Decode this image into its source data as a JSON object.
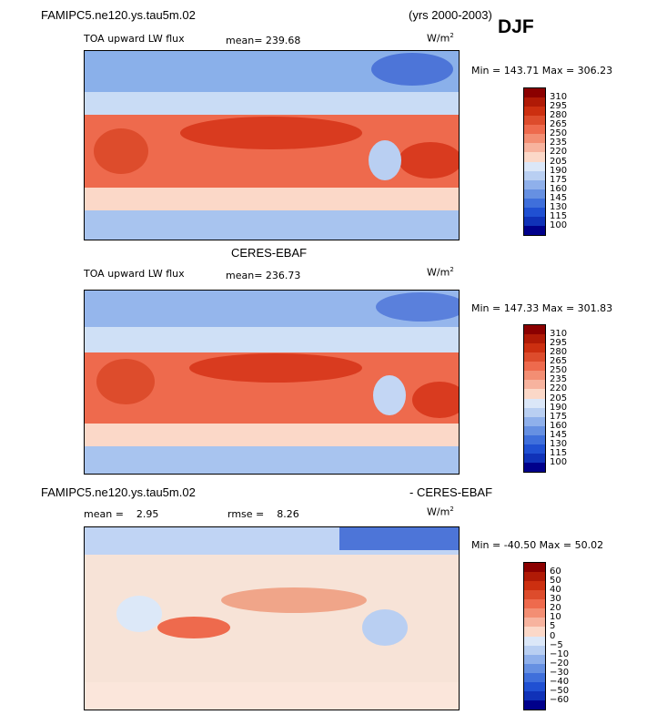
{
  "header": {
    "model_name": "FAMIPC5.ne120.ys.tau5m.02",
    "years": "(yrs 2000-2003)",
    "season": "DJF"
  },
  "panels": [
    {
      "title": "",
      "variable": "TOA upward LW flux",
      "stat_label": "mean=",
      "stat_value": "239.68",
      "rmse_label": "",
      "rmse_value": "",
      "units_base": "W/m",
      "units_sup": "2",
      "range_text": "Min = 143.71 Max = 306.23"
    },
    {
      "title": "CERES-EBAF",
      "variable": "TOA upward LW flux",
      "stat_label": "mean=",
      "stat_value": "236.73",
      "rmse_label": "",
      "rmse_value": "",
      "units_base": "W/m",
      "units_sup": "2",
      "range_text": "Min = 147.33 Max = 301.83"
    },
    {
      "title": "FAMIPC5.ne120.ys.tau5m.02",
      "title_right": "- CERES-EBAF",
      "variable": "",
      "stat_label": "mean =",
      "stat_value": "2.95",
      "rmse_label": "rmse =",
      "rmse_value": "8.26",
      "units_base": "W/m",
      "units_sup": "2",
      "range_text": "Min = -40.50 Max =  50.02"
    }
  ],
  "colors": {
    "abs_scale": [
      "#ffffff"
    ],
    "diff_scale": [
      "#ffffff"
    ]
  },
  "chart_data": [
    {
      "type": "heatmap",
      "title": "FAMIPC5.ne120.ys.tau5m.02 TOA upward LW flux",
      "units": "W/m^2",
      "mean": 239.68,
      "min": 143.71,
      "max": 306.23,
      "colorbar_levels": [
        "310",
        "295",
        "280",
        "265",
        "250",
        "235",
        "220",
        "205",
        "190",
        "175",
        "160",
        "145",
        "130",
        "115",
        "100"
      ]
    },
    {
      "type": "heatmap",
      "title": "CERES-EBAF TOA upward LW flux",
      "units": "W/m^2",
      "mean": 236.73,
      "min": 147.33,
      "max": 301.83,
      "colorbar_levels": [
        "310",
        "295",
        "280",
        "265",
        "250",
        "235",
        "220",
        "205",
        "190",
        "175",
        "160",
        "145",
        "130",
        "115",
        "100"
      ]
    },
    {
      "type": "heatmap",
      "title": "FAMIPC5.ne120.ys.tau5m.02 - CERES-EBAF",
      "units": "W/m^2",
      "mean": 2.95,
      "rmse": 8.26,
      "min": -40.5,
      "max": 50.02,
      "colorbar_levels": [
        "60",
        "50",
        "40",
        "30",
        "20",
        "10",
        "5",
        "0",
        "−5",
        "−10",
        "−20",
        "−30",
        "−40",
        "−50",
        "−60"
      ]
    }
  ]
}
